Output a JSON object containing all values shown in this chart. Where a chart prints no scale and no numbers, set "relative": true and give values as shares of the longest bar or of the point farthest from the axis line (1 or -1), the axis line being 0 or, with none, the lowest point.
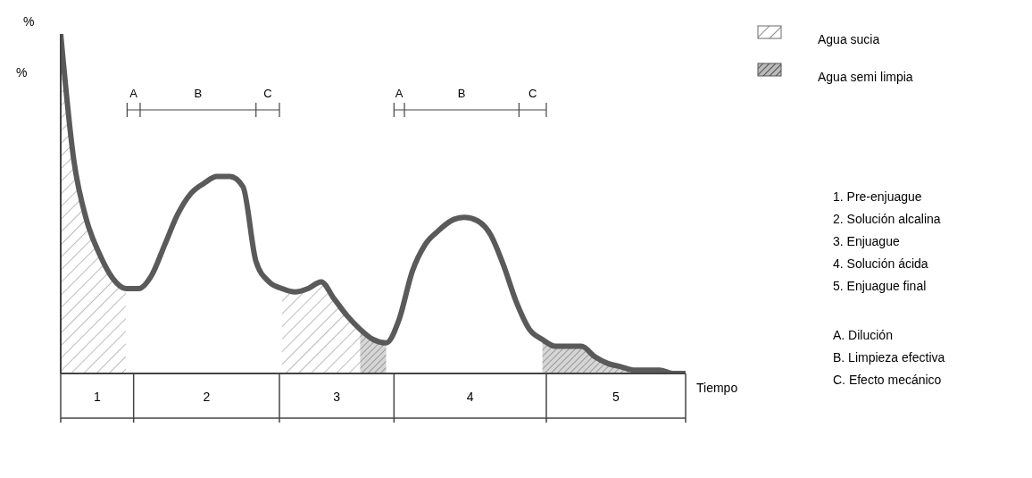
{
  "chart_data": {
    "type": "line",
    "relative": true,
    "xlabel": "Tiempo",
    "ylabel": "%",
    "legend": "top right",
    "categories": [
      null,
      null,
      null,
      null,
      null,
      null,
      null,
      null,
      null,
      null,
      null,
      null,
      null,
      null,
      null,
      null,
      null,
      null,
      null,
      null,
      null,
      null,
      null,
      null,
      null,
      null,
      null,
      null,
      null,
      null,
      null,
      null,
      null,
      null,
      null,
      null,
      null,
      null,
      null,
      null,
      null,
      null,
      null,
      null,
      null,
      null,
      null,
      null,
      null
    ],
    "series": [
      {
        "color": "#5a5a5a",
        "values": [
          1,
          0.63,
          0.45,
          0.35,
          0.28,
          0.25,
          0.25,
          0.29,
          0.38,
          0.47,
          0.53,
          0.56,
          0.58,
          0.58,
          0.55,
          0.33,
          0.27,
          0.25,
          0.24,
          0.25,
          0.27,
          0.22,
          0.17,
          0.13,
          0.1,
          0.09,
          0.16,
          0.3,
          0.38,
          0.42,
          0.45,
          0.46,
          0.45,
          0.41,
          0.32,
          0.21,
          0.13,
          0.1,
          0.08,
          0.08,
          0.08,
          0.05,
          0.03,
          0.02,
          0.01,
          0.01,
          0.01,
          0,
          0
        ]
      },
      {
        "type": "area",
        "name": "Agua sucia",
        "color": "#6a6a6a",
        "values": [
          1,
          0.63,
          0.45,
          0.35,
          0.28,
          0.25,
          null,
          null,
          null,
          null,
          null,
          null,
          null,
          null,
          null,
          null,
          null,
          0.25,
          0.24,
          0.25,
          0.27,
          0.22,
          0.17,
          0.13,
          null,
          null,
          null,
          null,
          null,
          null,
          null,
          null,
          null,
          null,
          null,
          null,
          null,
          null,
          null,
          null,
          null,
          null,
          null,
          null,
          null,
          null,
          null,
          null,
          null
        ]
      },
      {
        "type": "area",
        "name": "Agua semi limpia",
        "color": "#555555",
        "values": [
          null,
          null,
          null,
          null,
          null,
          null,
          null,
          null,
          null,
          null,
          null,
          null,
          null,
          null,
          null,
          null,
          null,
          null,
          null,
          null,
          null,
          null,
          null,
          0.13,
          0.1,
          0.09,
          null,
          null,
          null,
          null,
          null,
          null,
          null,
          null,
          null,
          null,
          null,
          0.1,
          0.08,
          0.08,
          0.08,
          0.05,
          0.03,
          0.02,
          0.01,
          0.01,
          null,
          null,
          null
        ]
      }
    ],
    "annotations": [
      "%",
      "1",
      "2",
      "3",
      "4",
      "5",
      "A",
      "B",
      "C",
      "A",
      "B",
      "C",
      "1.  Pre-enjuague",
      "2.  Solución alcalina",
      "3.  Enjuague",
      "4.  Solución ácida",
      "5.  Enjuague final",
      "A.  Dilución",
      "B.  Limpieza efectiva",
      "C.  Efecto mecánico"
    ]
  }
}
